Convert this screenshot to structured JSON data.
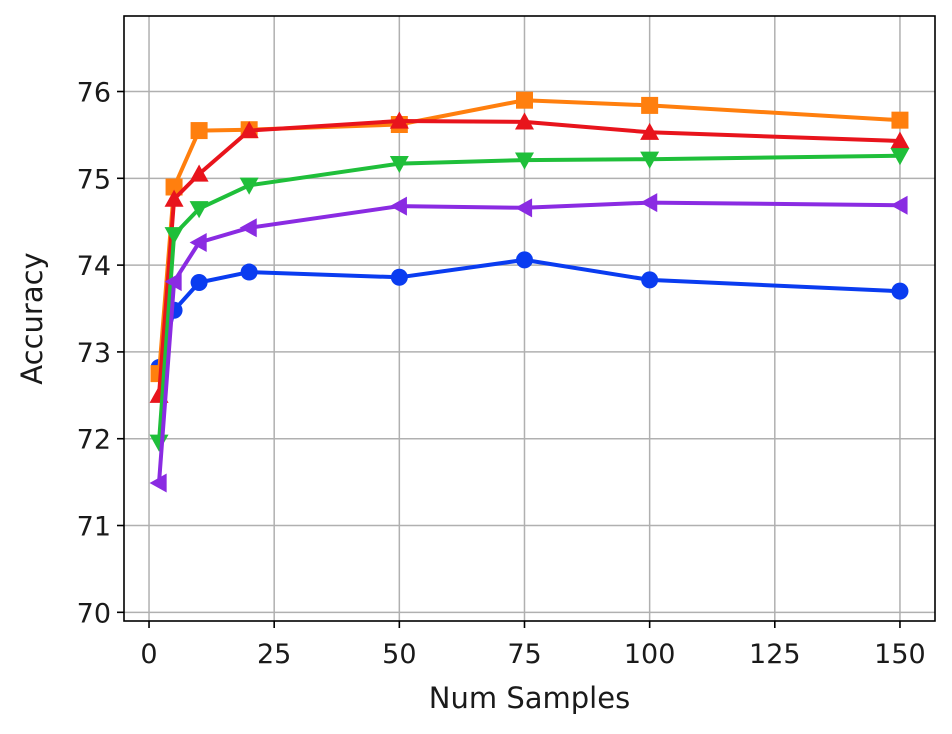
{
  "chart_data": {
    "type": "line",
    "title": "",
    "xlabel": "Num Samples",
    "ylabel": "Accuracy",
    "xlim": [
      -5,
      157
    ],
    "ylim": [
      69.9,
      76.87
    ],
    "xticks": [
      0,
      25,
      50,
      75,
      100,
      125,
      150
    ],
    "yticks": [
      70,
      71,
      72,
      73,
      74,
      75,
      76
    ],
    "grid": true,
    "x": [
      2,
      5,
      10,
      20,
      50,
      75,
      100,
      150
    ],
    "series": [
      {
        "color": "#0a3cf0",
        "marker": "circle",
        "values": [
          72.82,
          73.48,
          73.8,
          73.92,
          73.86,
          74.06,
          73.83,
          73.7
        ]
      },
      {
        "color": "#ff7f0e",
        "marker": "square",
        "values": [
          72.75,
          74.9,
          75.55,
          75.56,
          75.62,
          75.9,
          75.84,
          75.67
        ]
      },
      {
        "color": "#e8141c",
        "marker": "triangle-up",
        "values": [
          72.5,
          74.76,
          75.05,
          75.55,
          75.66,
          75.65,
          75.53,
          75.43
        ]
      },
      {
        "color": "#1fbf3a",
        "marker": "triangle-down",
        "values": [
          71.96,
          74.35,
          74.65,
          74.92,
          75.17,
          75.21,
          75.22,
          75.26
        ]
      },
      {
        "color": "#8a2be2",
        "marker": "triangle-left",
        "values": [
          71.49,
          73.81,
          74.26,
          74.43,
          74.68,
          74.66,
          74.72,
          74.69
        ]
      }
    ]
  }
}
